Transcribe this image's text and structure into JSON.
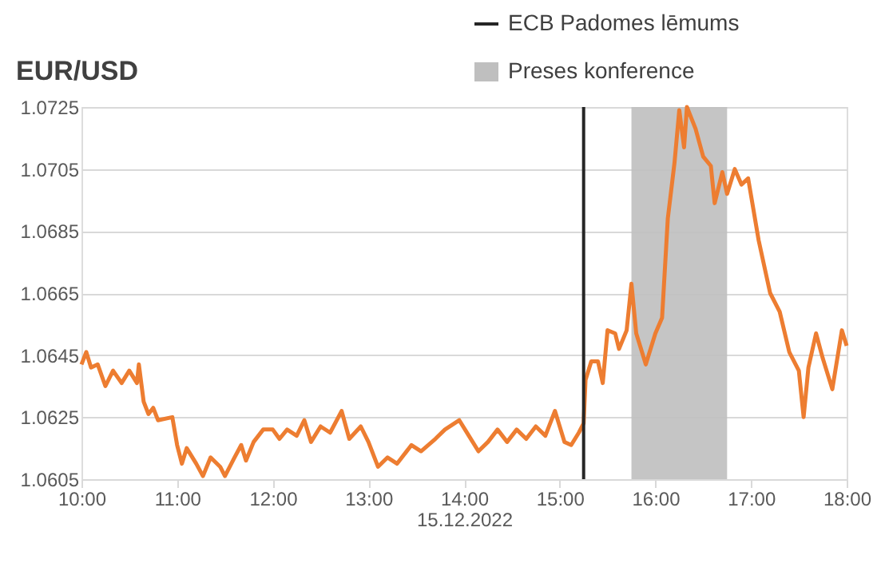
{
  "chart_data": {
    "type": "line",
    "title": "EUR/USD",
    "xlabel": "15.12.2022",
    "x": [
      10.0,
      10.05,
      10.1,
      10.17,
      10.25,
      10.33,
      10.42,
      10.5,
      10.58,
      10.6,
      10.65,
      10.7,
      10.75,
      10.8,
      10.95,
      11.0,
      11.05,
      11.1,
      11.2,
      11.27,
      11.35,
      11.45,
      11.5,
      11.6,
      11.67,
      11.72,
      11.8,
      11.9,
      12.0,
      12.07,
      12.15,
      12.25,
      12.33,
      12.4,
      12.5,
      12.6,
      12.72,
      12.8,
      12.92,
      13.0,
      13.1,
      13.2,
      13.3,
      13.45,
      13.55,
      13.7,
      13.8,
      13.95,
      14.05,
      14.15,
      14.25,
      14.35,
      14.45,
      14.55,
      14.65,
      14.75,
      14.85,
      14.95,
      15.05,
      15.12,
      15.2,
      15.25,
      15.27,
      15.33,
      15.4,
      15.45,
      15.5,
      15.58,
      15.62,
      15.7,
      15.75,
      15.8,
      15.9,
      16.0,
      16.07,
      16.13,
      16.2,
      16.25,
      16.3,
      16.33,
      16.42,
      16.5,
      16.58,
      16.62,
      16.7,
      16.75,
      16.83,
      16.9,
      16.97,
      17.08,
      17.2,
      17.3,
      17.4,
      17.5,
      17.55,
      17.6,
      17.68,
      17.75,
      17.85,
      17.95,
      18.0
    ],
    "series": [
      {
        "color": "#ed7d31",
        "values": [
          1.0642,
          1.0646,
          1.0641,
          1.0642,
          1.0635,
          1.064,
          1.0636,
          1.064,
          1.0636,
          1.0642,
          1.063,
          1.0626,
          1.0628,
          1.0624,
          1.0625,
          1.0616,
          1.061,
          1.0615,
          1.061,
          1.0606,
          1.0612,
          1.0609,
          1.0606,
          1.0612,
          1.0616,
          1.0611,
          1.0617,
          1.0621,
          1.0621,
          1.0618,
          1.0621,
          1.0619,
          1.0624,
          1.0617,
          1.0622,
          1.062,
          1.0627,
          1.0618,
          1.0622,
          1.0617,
          1.0609,
          1.0612,
          1.061,
          1.0616,
          1.0614,
          1.0618,
          1.0621,
          1.0624,
          1.0619,
          1.0614,
          1.0617,
          1.0621,
          1.0617,
          1.0621,
          1.0618,
          1.0622,
          1.0619,
          1.0627,
          1.0617,
          1.0616,
          1.062,
          1.0623,
          1.0637,
          1.0643,
          1.0643,
          1.0636,
          1.0653,
          1.0652,
          1.0647,
          1.0653,
          1.0668,
          1.0652,
          1.0642,
          1.0652,
          1.0657,
          1.0689,
          1.0707,
          1.0724,
          1.0712,
          1.0725,
          1.0718,
          1.0709,
          1.0706,
          1.0694,
          1.0704,
          1.0697,
          1.0705,
          1.07,
          1.0702,
          1.0682,
          1.0665,
          1.0659,
          1.0646,
          1.064,
          1.0625,
          1.0641,
          1.0652,
          1.0644,
          1.0634,
          1.0653,
          1.0648
        ]
      }
    ],
    "xlim": [
      10,
      18
    ],
    "xticks": [
      {
        "value": 10,
        "label": "10:00"
      },
      {
        "value": 11,
        "label": "11:00"
      },
      {
        "value": 12,
        "label": "12:00"
      },
      {
        "value": 13,
        "label": "13:00"
      },
      {
        "value": 14,
        "label": "14:00"
      },
      {
        "value": 15,
        "label": "15:00"
      },
      {
        "value": 16,
        "label": "16:00"
      },
      {
        "value": 17,
        "label": "17:00"
      },
      {
        "value": 18,
        "label": "18:00"
      }
    ],
    "ylim": [
      1.0605,
      1.0725
    ],
    "yticks": [
      1.0605,
      1.0625,
      1.0645,
      1.0665,
      1.0685,
      1.0705,
      1.0725
    ],
    "ref_lines": [
      {
        "axis": "x",
        "value": 15.25,
        "label": "ECB Padomes lēmums",
        "color": "#262626"
      }
    ],
    "bands": [
      {
        "axis": "x",
        "from": 15.75,
        "to": 16.75,
        "label": "Preses konference",
        "color": "#bfbfbf"
      }
    ],
    "grid": "y",
    "legend": "top",
    "marker": "none",
    "line_style": "solid"
  }
}
